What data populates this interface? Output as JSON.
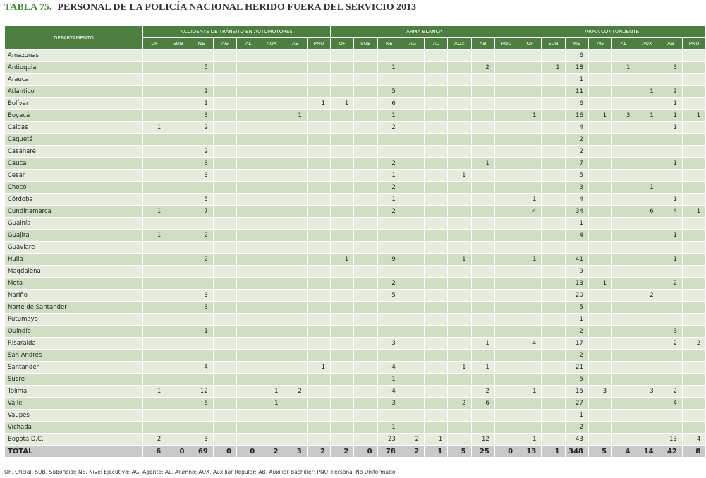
{
  "header": {
    "label": "TABLA 75.",
    "title": "PERSONAL DE LA POLICÍA NACIONAL HERIDO FUERA DEL SERVICIO 2013"
  },
  "table": {
    "row_header": "DEPARTAMENTO",
    "groups": [
      {
        "name": "ACCIDENTE DE TRÁNSITO EN AUTOMOTORES",
        "columns": [
          "OF",
          "SUB",
          "NE",
          "AG",
          "AL",
          "AUX",
          "AB",
          "PNU"
        ]
      },
      {
        "name": "ARMA BLANCA",
        "columns": [
          "OF",
          "SUB",
          "NE",
          "AG",
          "AL",
          "AUX",
          "AB",
          "PNU"
        ]
      },
      {
        "name": "ARMA CONTUNDENTE",
        "columns": [
          "OF",
          "SUB",
          "NE",
          "AG",
          "AL",
          "AUX",
          "AB",
          "PNU"
        ]
      }
    ],
    "rows": [
      {
        "name": "Amazonas",
        "values": [
          null,
          null,
          null,
          null,
          null,
          null,
          null,
          null,
          null,
          null,
          null,
          null,
          null,
          null,
          null,
          null,
          null,
          null,
          6,
          null,
          null,
          null,
          null,
          null
        ]
      },
      {
        "name": "Antioquia",
        "values": [
          null,
          null,
          5,
          null,
          null,
          null,
          null,
          null,
          null,
          null,
          1,
          null,
          null,
          null,
          2,
          null,
          null,
          1,
          18,
          null,
          1,
          null,
          3,
          null
        ]
      },
      {
        "name": "Arauca",
        "values": [
          null,
          null,
          null,
          null,
          null,
          null,
          null,
          null,
          null,
          null,
          null,
          null,
          null,
          null,
          null,
          null,
          null,
          null,
          1,
          null,
          null,
          null,
          null,
          null
        ]
      },
      {
        "name": "Atlántico",
        "values": [
          null,
          null,
          2,
          null,
          null,
          null,
          null,
          null,
          null,
          null,
          5,
          null,
          null,
          null,
          null,
          null,
          null,
          null,
          11,
          null,
          null,
          1,
          2,
          null
        ]
      },
      {
        "name": "Bolívar",
        "values": [
          null,
          null,
          1,
          null,
          null,
          null,
          null,
          1,
          1,
          null,
          6,
          null,
          null,
          null,
          null,
          null,
          null,
          null,
          6,
          null,
          null,
          null,
          1,
          null
        ]
      },
      {
        "name": "Boyacá",
        "values": [
          null,
          null,
          3,
          null,
          null,
          null,
          1,
          null,
          null,
          null,
          1,
          null,
          null,
          null,
          null,
          null,
          1,
          null,
          16,
          1,
          3,
          1,
          1,
          1
        ]
      },
      {
        "name": "Caldas",
        "values": [
          1,
          null,
          2,
          null,
          null,
          null,
          null,
          null,
          null,
          null,
          2,
          null,
          null,
          null,
          null,
          null,
          null,
          null,
          4,
          null,
          null,
          null,
          1,
          null
        ]
      },
      {
        "name": "Caquetá",
        "values": [
          null,
          null,
          null,
          null,
          null,
          null,
          null,
          null,
          null,
          null,
          null,
          null,
          null,
          null,
          null,
          null,
          null,
          null,
          2,
          null,
          null,
          null,
          null,
          null
        ]
      },
      {
        "name": "Casanare",
        "values": [
          null,
          null,
          2,
          null,
          null,
          null,
          null,
          null,
          null,
          null,
          null,
          null,
          null,
          null,
          null,
          null,
          null,
          null,
          2,
          null,
          null,
          null,
          null,
          null
        ]
      },
      {
        "name": "Cauca",
        "values": [
          null,
          null,
          3,
          null,
          null,
          null,
          null,
          null,
          null,
          null,
          2,
          null,
          null,
          null,
          1,
          null,
          null,
          null,
          7,
          null,
          null,
          null,
          1,
          null
        ]
      },
      {
        "name": "Cesar",
        "values": [
          null,
          null,
          3,
          null,
          null,
          null,
          null,
          null,
          null,
          null,
          1,
          null,
          null,
          1,
          null,
          null,
          null,
          null,
          5,
          null,
          null,
          null,
          null,
          null
        ]
      },
      {
        "name": "Chocó",
        "values": [
          null,
          null,
          null,
          null,
          null,
          null,
          null,
          null,
          null,
          null,
          2,
          null,
          null,
          null,
          null,
          null,
          null,
          null,
          3,
          null,
          null,
          1,
          null,
          null
        ]
      },
      {
        "name": "Córdoba",
        "values": [
          null,
          null,
          5,
          null,
          null,
          null,
          null,
          null,
          null,
          null,
          1,
          null,
          null,
          null,
          null,
          null,
          1,
          null,
          4,
          null,
          null,
          null,
          1,
          null
        ]
      },
      {
        "name": "Cundinamarca",
        "values": [
          1,
          null,
          7,
          null,
          null,
          null,
          null,
          null,
          null,
          null,
          2,
          null,
          null,
          null,
          null,
          null,
          4,
          null,
          34,
          null,
          null,
          6,
          4,
          1
        ]
      },
      {
        "name": "Guainía",
        "values": [
          null,
          null,
          null,
          null,
          null,
          null,
          null,
          null,
          null,
          null,
          null,
          null,
          null,
          null,
          null,
          null,
          null,
          null,
          1,
          null,
          null,
          null,
          null,
          null
        ]
      },
      {
        "name": "Guajira",
        "values": [
          1,
          null,
          2,
          null,
          null,
          null,
          null,
          null,
          null,
          null,
          null,
          null,
          null,
          null,
          null,
          null,
          null,
          null,
          4,
          null,
          null,
          null,
          1,
          null
        ]
      },
      {
        "name": "Guaviare",
        "values": [
          null,
          null,
          null,
          null,
          null,
          null,
          null,
          null,
          null,
          null,
          null,
          null,
          null,
          null,
          null,
          null,
          null,
          null,
          null,
          null,
          null,
          null,
          null,
          null
        ]
      },
      {
        "name": "Huila",
        "values": [
          null,
          null,
          2,
          null,
          null,
          null,
          null,
          null,
          1,
          null,
          9,
          null,
          null,
          1,
          null,
          null,
          1,
          null,
          41,
          null,
          null,
          null,
          1,
          null
        ]
      },
      {
        "name": "Magdalena",
        "values": [
          null,
          null,
          null,
          null,
          null,
          null,
          null,
          null,
          null,
          null,
          null,
          null,
          null,
          null,
          null,
          null,
          null,
          null,
          9,
          null,
          null,
          null,
          null,
          null
        ]
      },
      {
        "name": "Meta",
        "values": [
          null,
          null,
          null,
          null,
          null,
          null,
          null,
          null,
          null,
          null,
          2,
          null,
          null,
          null,
          null,
          null,
          null,
          null,
          13,
          1,
          null,
          null,
          2,
          null
        ]
      },
      {
        "name": "Nariño",
        "values": [
          null,
          null,
          3,
          null,
          null,
          null,
          null,
          null,
          null,
          null,
          5,
          null,
          null,
          null,
          null,
          null,
          null,
          null,
          20,
          null,
          null,
          2,
          null,
          null
        ]
      },
      {
        "name": "Norte de Santander",
        "values": [
          null,
          null,
          3,
          null,
          null,
          null,
          null,
          null,
          null,
          null,
          null,
          null,
          null,
          null,
          null,
          null,
          null,
          null,
          5,
          null,
          null,
          null,
          null,
          null
        ]
      },
      {
        "name": "Putumayo",
        "values": [
          null,
          null,
          null,
          null,
          null,
          null,
          null,
          null,
          null,
          null,
          null,
          null,
          null,
          null,
          null,
          null,
          null,
          null,
          1,
          null,
          null,
          null,
          null,
          null
        ]
      },
      {
        "name": "Quindío",
        "values": [
          null,
          null,
          1,
          null,
          null,
          null,
          null,
          null,
          null,
          null,
          null,
          null,
          null,
          null,
          null,
          null,
          null,
          null,
          2,
          null,
          null,
          null,
          3,
          null
        ]
      },
      {
        "name": "Risaralda",
        "values": [
          null,
          null,
          null,
          null,
          null,
          null,
          null,
          null,
          null,
          null,
          3,
          null,
          null,
          null,
          1,
          null,
          4,
          null,
          17,
          null,
          null,
          null,
          2,
          2
        ]
      },
      {
        "name": "San Andrés",
        "values": [
          null,
          null,
          null,
          null,
          null,
          null,
          null,
          null,
          null,
          null,
          null,
          null,
          null,
          null,
          null,
          null,
          null,
          null,
          2,
          null,
          null,
          null,
          null,
          null
        ]
      },
      {
        "name": "Santander",
        "values": [
          null,
          null,
          4,
          null,
          null,
          null,
          null,
          1,
          null,
          null,
          4,
          null,
          null,
          1,
          1,
          null,
          null,
          null,
          21,
          null,
          null,
          null,
          null,
          null
        ]
      },
      {
        "name": "Sucre",
        "values": [
          null,
          null,
          null,
          null,
          null,
          null,
          null,
          null,
          null,
          null,
          1,
          null,
          null,
          null,
          null,
          null,
          null,
          null,
          5,
          null,
          null,
          null,
          null,
          null
        ]
      },
      {
        "name": "Tolima",
        "values": [
          1,
          null,
          12,
          null,
          null,
          1,
          2,
          null,
          null,
          null,
          4,
          null,
          null,
          null,
          2,
          null,
          1,
          null,
          15,
          3,
          null,
          3,
          2,
          null
        ]
      },
      {
        "name": "Valle",
        "values": [
          null,
          null,
          6,
          null,
          null,
          1,
          null,
          null,
          null,
          null,
          3,
          null,
          null,
          2,
          6,
          null,
          null,
          null,
          27,
          null,
          null,
          null,
          4,
          null
        ]
      },
      {
        "name": "Vaupés",
        "values": [
          null,
          null,
          null,
          null,
          null,
          null,
          null,
          null,
          null,
          null,
          null,
          null,
          null,
          null,
          null,
          null,
          null,
          null,
          1,
          null,
          null,
          null,
          null,
          null
        ]
      },
      {
        "name": "Vichada",
        "values": [
          null,
          null,
          null,
          null,
          null,
          null,
          null,
          null,
          null,
          null,
          1,
          null,
          null,
          null,
          null,
          null,
          null,
          null,
          2,
          null,
          null,
          null,
          null,
          null
        ]
      },
      {
        "name": "Bogotá D.C.",
        "values": [
          2,
          null,
          3,
          null,
          null,
          null,
          null,
          null,
          null,
          null,
          23,
          2,
          1,
          null,
          12,
          null,
          1,
          null,
          43,
          null,
          null,
          null,
          13,
          4
        ]
      }
    ],
    "total": {
      "name": "TOTAL",
      "values": [
        6,
        0,
        69,
        0,
        0,
        2,
        3,
        2,
        2,
        0,
        78,
        2,
        1,
        5,
        25,
        0,
        13,
        1,
        348,
        5,
        4,
        14,
        42,
        8
      ]
    }
  },
  "footnote": "OF, Oficial; SUB, Suboficial; NE, Nivel Ejecutivo; AG, Agente; AL, Alumno; AUX, Auxiliar Regular; AB, Auxiliar Bachiller; PNU, Personal No Uniformado"
}
